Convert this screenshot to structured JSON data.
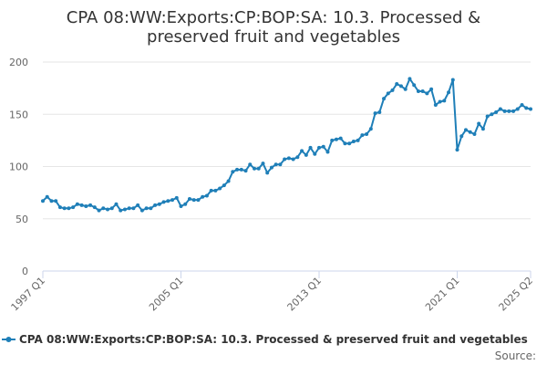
{
  "chart_data": {
    "type": "line",
    "title_lines": [
      "CPA 08:WW:Exports:CP:BOP:SA: 10.3. Processed &",
      "preserved fruit and vegetables"
    ],
    "series_name": "CPA 08:WW:Exports:CP:BOP:SA: 10.3. Processed & preserved fruit and vegetables",
    "source_label": "Source:",
    "ylim": [
      0,
      200
    ],
    "y_ticks": [
      "0",
      "50",
      "100",
      "150",
      "200"
    ],
    "x_ticks": [
      {
        "label": "1997 Q1",
        "index": 0
      },
      {
        "label": "2005 Q1",
        "index": 32
      },
      {
        "label": "2013 Q1",
        "index": 64
      },
      {
        "label": "2021 Q1",
        "index": 96
      },
      {
        "label": "2025 Q2",
        "index": 113
      }
    ],
    "series_color": "#1f7fb8",
    "quarters_start": "1997 Q1",
    "values": [
      67,
      71,
      67,
      67,
      61,
      60,
      60,
      61,
      64,
      63,
      62,
      63,
      61,
      58,
      60,
      59,
      60,
      64,
      58,
      59,
      60,
      60,
      63,
      58,
      60,
      60,
      63,
      64,
      66,
      67,
      68,
      70,
      62,
      64,
      69,
      68,
      68,
      71,
      72,
      77,
      77,
      79,
      82,
      86,
      95,
      97,
      97,
      96,
      102,
      98,
      98,
      103,
      94,
      99,
      102,
      102,
      107,
      108,
      107,
      109,
      115,
      111,
      118,
      112,
      118,
      119,
      114,
      125,
      126,
      127,
      122,
      122,
      124,
      125,
      130,
      131,
      136,
      151,
      152,
      165,
      170,
      173,
      179,
      177,
      174,
      184,
      178,
      172,
      172,
      170,
      174,
      159,
      162,
      163,
      171,
      183,
      116,
      129,
      135,
      133,
      131,
      141,
      136,
      148,
      150,
      152,
      155,
      153,
      153,
      153,
      155,
      159,
      156,
      155
    ]
  }
}
